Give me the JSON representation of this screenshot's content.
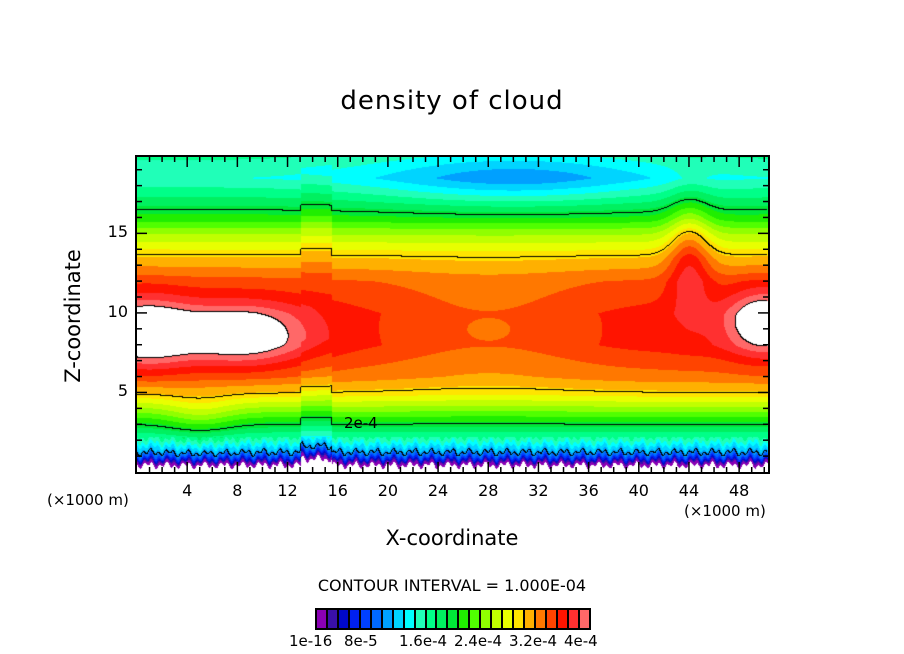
{
  "chart_data": {
    "type": "heatmap",
    "subtype": "filled-contour",
    "title": "density of cloud",
    "xlabel": "X-coordinate",
    "ylabel": "Z-coordinate",
    "x_unit": "(×1000 m)",
    "y_unit": "(×1000 m)",
    "xlim": [
      0,
      50.3
    ],
    "ylim": [
      0,
      19.8
    ],
    "x_ticks": [
      4,
      8,
      12,
      16,
      20,
      24,
      28,
      32,
      36,
      40,
      44,
      48
    ],
    "x_tick_labels": [
      "4",
      "8",
      "12",
      "16",
      "20",
      "24",
      "28",
      "32",
      "36",
      "40",
      "44",
      "48"
    ],
    "y_ticks": [
      5,
      10,
      15
    ],
    "y_tick_labels": [
      "5",
      "10",
      "15"
    ],
    "contour_interval_text": "CONTOUR INTERVAL = 1.000E-04",
    "contour_line_levels": [
      0.0001,
      0.0002,
      0.0003,
      0.0004
    ],
    "contour_line_label": "2e-4",
    "colorbar": {
      "min": 1e-16,
      "max": 0.0004,
      "step": 1.6e-05,
      "labels": [
        "1e-16",
        "8e-5",
        "1.6e-4",
        "2.4e-4",
        "3.2e-4",
        "4e-4"
      ],
      "colors": [
        "#8a00b4",
        "#3a10a8",
        "#0008c8",
        "#0020f0",
        "#0040ff",
        "#0068ff",
        "#00a0ff",
        "#00d4ff",
        "#00ffff",
        "#20ffb8",
        "#00ff88",
        "#00f060",
        "#00e838",
        "#20ee00",
        "#50ff00",
        "#90ff00",
        "#c0ff00",
        "#e8ff00",
        "#ffe400",
        "#ffb000",
        "#ff7800",
        "#ff4400",
        "#ff1400",
        "#ff3030",
        "#ff6868",
        "#ffa0a0"
      ]
    },
    "above_max_color": "#ffffff",
    "features": [
      {
        "name": "high-density core (white, >4e-4)",
        "x": [
          0,
          3
        ],
        "z": [
          7,
          10
        ]
      },
      {
        "name": "high-density core (white, >4e-4)",
        "x": [
          5,
          12
        ],
        "z": [
          7.5,
          9.5
        ]
      },
      {
        "name": "high-density core (white, >4e-4)",
        "x": [
          48,
          50
        ],
        "z": [
          8.5,
          10
        ]
      },
      {
        "name": "low-density dome (green)",
        "x": [
          20,
          38
        ],
        "z": [
          17,
          19.8
        ]
      }
    ]
  }
}
